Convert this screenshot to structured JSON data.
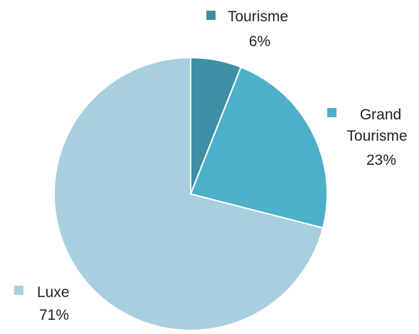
{
  "chart_data": {
    "type": "pie",
    "title": "",
    "start_angle_deg": 0,
    "direction": "clockwise",
    "slices": [
      {
        "name": "Tourisme",
        "line1": "Tourisme",
        "line2": "",
        "percent_label": "6%",
        "value": 6,
        "color": "#3e8ea5"
      },
      {
        "name": "Grand Tourisme",
        "line1": "Grand",
        "line2": "Tourisme",
        "percent_label": "23%",
        "value": 23,
        "color": "#4bb0c8"
      },
      {
        "name": "Luxe",
        "line1": "Luxe",
        "line2": "",
        "percent_label": "71%",
        "value": 71,
        "color": "#a8cfde"
      }
    ],
    "legend_style": "inline-labels-with-square-markers",
    "slice_border_color": "#ffffff"
  }
}
